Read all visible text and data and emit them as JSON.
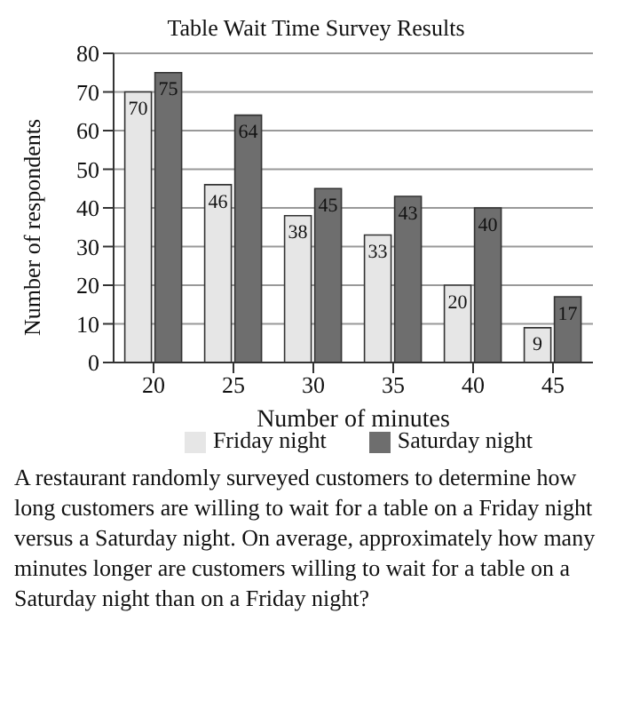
{
  "chart_data": {
    "type": "bar",
    "title": "Table Wait Time Survey Results",
    "xlabel": "Number of minutes",
    "ylabel": "Number of respondents",
    "categories": [
      "20",
      "25",
      "30",
      "35",
      "40",
      "45"
    ],
    "series": [
      {
        "name": "Friday night",
        "color": "#e6e6e6",
        "values": [
          70,
          46,
          38,
          33,
          20,
          9
        ]
      },
      {
        "name": "Saturday night",
        "color": "#6e6e6e",
        "values": [
          75,
          64,
          45,
          43,
          40,
          17
        ]
      }
    ],
    "ylim": [
      0,
      80
    ],
    "yticks": [
      0,
      10,
      20,
      30,
      40,
      50,
      60,
      70,
      80
    ],
    "grid": "y",
    "legend": "bottom",
    "data_labels": true,
    "annotations": [
      "A restaurant randomly surveyed customers to determine how long customers are willing to wait for a table on a Friday night versus a Saturday night. On average, approximately how many minutes longer are customers willing to wait for a table on a Saturday night than on a Friday night?"
    ]
  }
}
